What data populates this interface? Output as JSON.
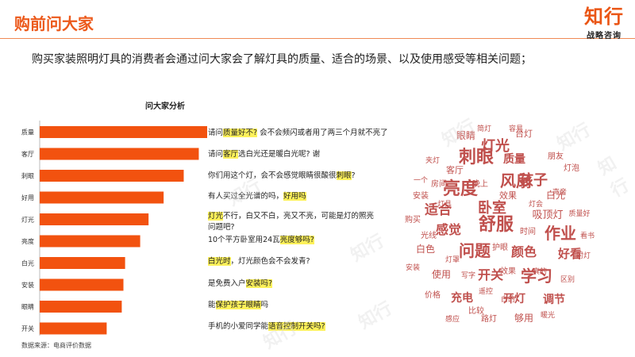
{
  "header": {
    "title": "购前问大家",
    "brand_name": "知行",
    "brand_sub": "战略咨询"
  },
  "intro": "购买家装照明灯具的消费者会通过问大家会了解灯具的质量、适合的场景、以及使用感受等相关问题；",
  "chart_data": {
    "type": "bar",
    "orientation": "horizontal",
    "title": "问大家分析",
    "categories": [
      "质量",
      "客厅",
      "刺眼",
      "好用",
      "灯光",
      "亮度",
      "白光",
      "安装",
      "眼睛",
      "开关"
    ],
    "values": [
      100,
      95,
      86,
      74,
      65,
      60,
      51,
      50,
      49,
      40
    ],
    "bar_color": "#f2520f"
  },
  "comments": [
    {
      "pre": "请问",
      "hl": "质量好不?",
      "post": " 会不会频闪或者用了两三个月就不亮了"
    },
    {
      "pre": "请问",
      "hl": "客厅",
      "post": "选白光还是暖白光呢? 谢"
    },
    {
      "pre": "你们用这个灯，会不会感觉眼睛很酸很",
      "hl": "刺眼",
      "post": "?"
    },
    {
      "pre": "有人买过全光谱的吗，",
      "hl": "好用吗",
      "post": ""
    },
    {
      "pre": "",
      "hl": "灯光",
      "post": "不行，白又不白，亮又不亮，可能是灯的照亮问题吧?"
    },
    {
      "pre": "10个平方卧室用24瓦",
      "hl": "亮度够吗?",
      "post": ""
    },
    {
      "pre": "",
      "hl": "白光时",
      "post": "，灯光颜色会不会发青?"
    },
    {
      "pre": "是免费入户",
      "hl": "安装吗?",
      "post": ""
    },
    {
      "pre": "能",
      "hl": "保护孩子眼睛",
      "post": "吗"
    },
    {
      "pre": "手机的小爱同学能",
      "hl": "语音控制开关吗?",
      "post": ""
    }
  ],
  "source_note": "数据来源：电商评价数据",
  "word_cloud": {
    "color": "#c0504d",
    "words": [
      "灯光",
      "眼睛",
      "台灯",
      "刺眼",
      "质量",
      "客厅",
      "孩子",
      "亮度",
      "风扇",
      "安装",
      "白光",
      "卧室",
      "适合",
      "吸顶灯",
      "感觉",
      "舒服",
      "作业",
      "白色",
      "问题",
      "颜色",
      "好看",
      "使用",
      "开关",
      "学习",
      "充电",
      "开灯",
      "调节",
      "路灯",
      "够用",
      "光线",
      "灯泡",
      "购买",
      "效果",
      "朋友",
      "房间",
      "写字",
      "时间",
      "价格",
      "质量好",
      "晚上",
      "效果",
      "区别",
      "灯罩",
      "真的",
      "比较",
      "容易",
      "简灯",
      "一个",
      "安装",
      "看书",
      "暖光",
      "感应",
      "护眼",
      "声音",
      "灯具",
      "灯会",
      "遥控",
      "射灯",
      "夹灯",
      "白的"
    ]
  },
  "watermark": "知行"
}
